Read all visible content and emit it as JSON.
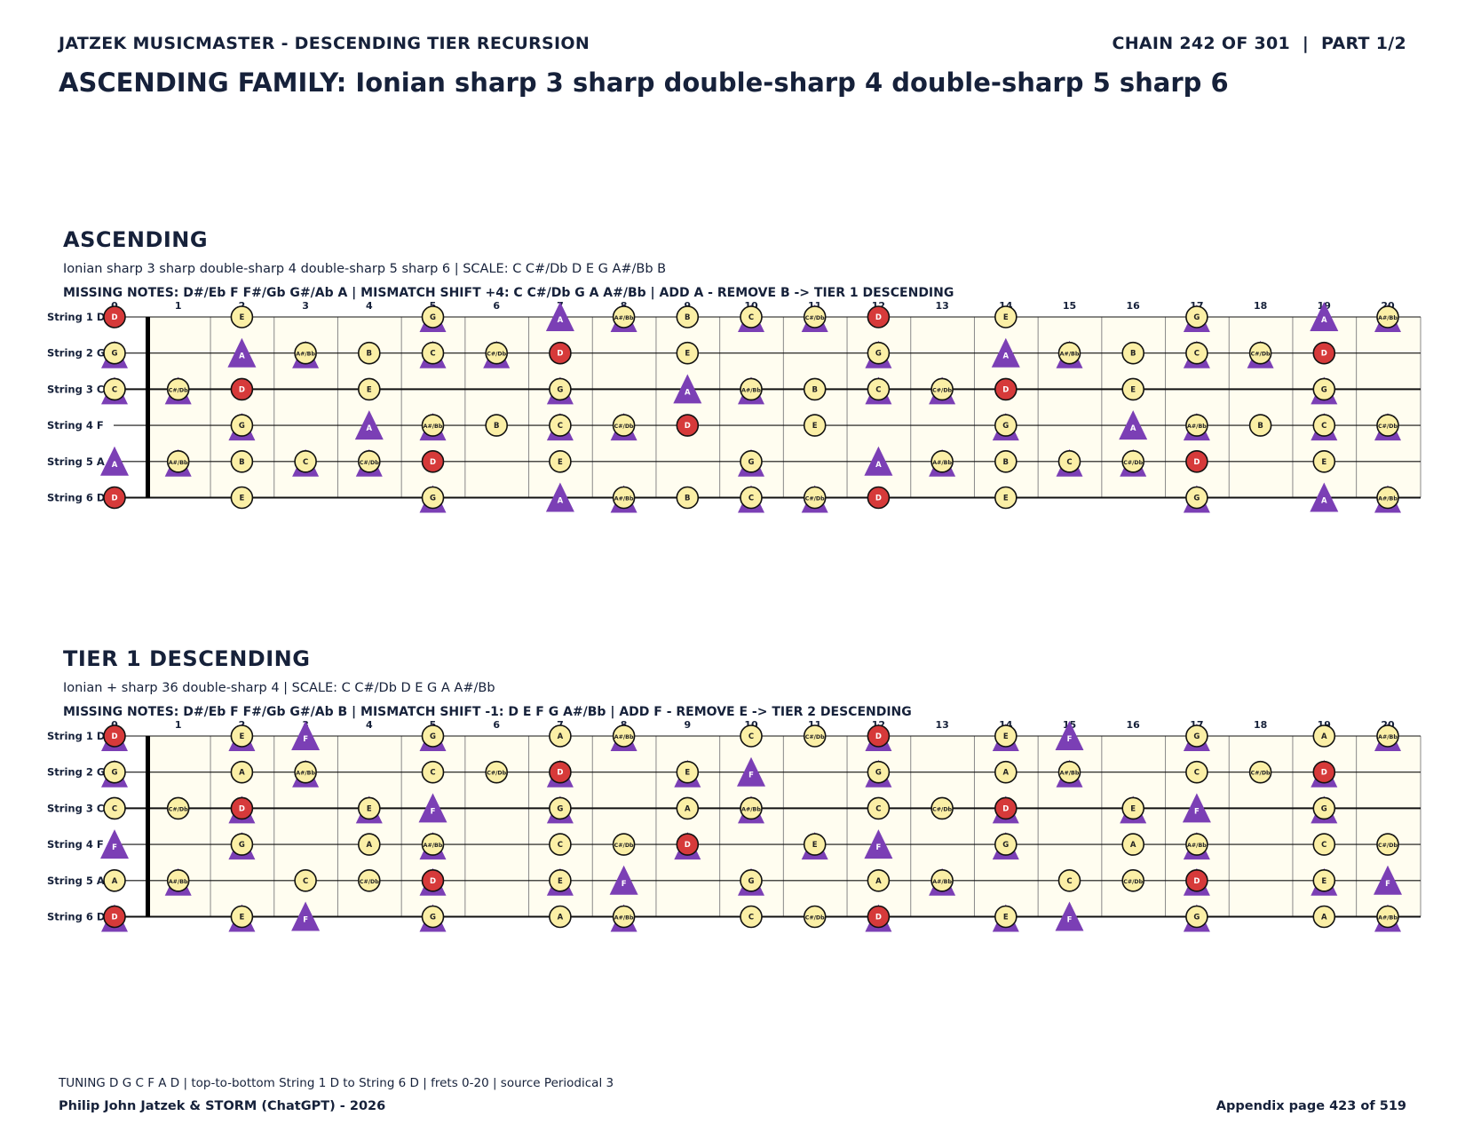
{
  "header": {
    "left": "JATZEK MUSICMASTER - DESCENDING TIER RECURSION",
    "right": "CHAIN 242 OF 301  |  PART 1/2",
    "title": "ASCENDING FAMILY: Ionian sharp 3 sharp double-sharp 4 double-sharp 5 sharp 6"
  },
  "fret_numbers": [
    "0",
    "1",
    "2",
    "3",
    "4",
    "5",
    "6",
    "7",
    "8",
    "9",
    "10",
    "11",
    "12",
    "13",
    "14",
    "15",
    "16",
    "17",
    "18",
    "19",
    "20"
  ],
  "sections": [
    {
      "id": "ascending",
      "title": "ASCENDING",
      "info": "Ionian sharp 3 sharp double-sharp 4 double-sharp 5 sharp 6  |  SCALE: C C#/Db D E G A#/Bb B",
      "missing": "MISSING NOTES: D#/Eb F F#/Gb G#/Ab A  |  MISMATCH SHIFT +4: C C#/Db G A A#/Bb  |  ADD A - REMOVE B -> TIER 1 DESCENDING",
      "root": "D",
      "strings": [
        {
          "label": "String 1 D",
          "open": "D"
        },
        {
          "label": "String 2 G",
          "open": "G"
        },
        {
          "label": "String 3 C",
          "open": "C"
        },
        {
          "label": "String 4 F",
          "open": "F"
        },
        {
          "label": "String 5 A",
          "open": "A"
        },
        {
          "label": "String 6 D",
          "open": "D"
        }
      ],
      "scale_notes": [
        "C",
        "C#/Db",
        "D",
        "E",
        "G",
        "A#/Bb",
        "B"
      ],
      "triangle_notes": [
        "C",
        "C#/Db",
        "G",
        "A",
        "A#/Bb"
      ]
    },
    {
      "id": "tier1",
      "title": "TIER 1 DESCENDING",
      "info": "Ionian + sharp 36 double-sharp 4  |  SCALE: C C#/Db D E G A A#/Bb",
      "missing": "MISSING NOTES: D#/Eb F F#/Gb G#/Ab B  |  MISMATCH SHIFT -1: D E F G A#/Bb  |  ADD F - REMOVE E -> TIER 2 DESCENDING",
      "root": "D",
      "strings": [
        {
          "label": "String 1 D",
          "open": "D"
        },
        {
          "label": "String 2 G",
          "open": "G"
        },
        {
          "label": "String 3 C",
          "open": "C"
        },
        {
          "label": "String 4 F",
          "open": "F"
        },
        {
          "label": "String 5 A",
          "open": "A"
        },
        {
          "label": "String 6 D",
          "open": "D"
        }
      ],
      "scale_notes": [
        "C",
        "C#/Db",
        "D",
        "E",
        "G",
        "A",
        "A#/Bb"
      ],
      "triangle_notes": [
        "D",
        "E",
        "F",
        "G",
        "A#/Bb"
      ]
    }
  ],
  "colors": {
    "root": "#d63a3a",
    "note": "#fbefa6",
    "triangle": "#7b3fb5",
    "fretboard": "#fffdf0",
    "text": "#16213a"
  },
  "footer": {
    "note": "TUNING D G C F A D | top-to-bottom String 1 D to String 6 D | frets 0-20 | source Periodical 3",
    "left": "Philip John Jatzek & STORM (ChatGPT) - 2026",
    "right": "Appendix page 423 of 519"
  }
}
